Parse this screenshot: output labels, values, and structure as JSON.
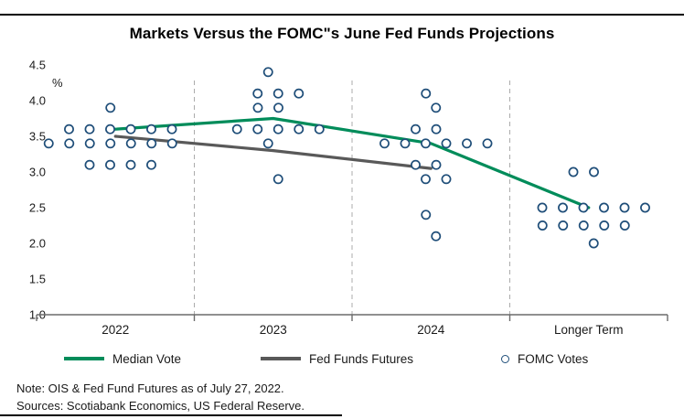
{
  "page": {
    "note": "Note: OIS & Fed Fund Futures as of July 27, 2022.",
    "sources": "Sources: Scotiabank Economics, US Federal Reserve."
  },
  "legend": {
    "items": [
      {
        "label": "Median Vote",
        "type": "line",
        "color": "#008C5A"
      },
      {
        "label": "Fed Funds Futures",
        "type": "line",
        "color": "#595959"
      },
      {
        "label": "FOMC Votes",
        "type": "dot",
        "color": "#1F4E79"
      }
    ]
  },
  "chart_data": {
    "type": "scatter",
    "title": "Markets Versus the FOMC\"s June Fed Funds Projections",
    "ylabel": "%",
    "xlabel": "",
    "ylim": [
      1.0,
      4.5
    ],
    "yticks": [
      4.5,
      4.0,
      3.5,
      3.0,
      2.5,
      2.0,
      1.5,
      1.0
    ],
    "categories": [
      "2022",
      "2023",
      "2024",
      "Longer Term"
    ],
    "grid": false,
    "category_separators": "dashed",
    "legend_position": "bottom",
    "series": [
      {
        "name": "Median Vote",
        "type": "line",
        "color": "#008C5A",
        "values": [
          3.6,
          3.75,
          3.4,
          2.5
        ]
      },
      {
        "name": "Fed Funds Futures",
        "type": "line",
        "color": "#595959",
        "values": [
          3.5,
          3.3,
          3.05,
          null
        ]
      },
      {
        "name": "FOMC Votes",
        "type": "scatter",
        "color": "#1F4E79",
        "dots": {
          "2022": [
            [
              3.9,
              1
            ],
            [
              3.6,
              6
            ],
            [
              3.4,
              7
            ],
            [
              3.1,
              4
            ]
          ],
          "2023": [
            [
              4.4,
              1
            ],
            [
              4.1,
              3
            ],
            [
              3.9,
              2
            ],
            [
              3.6,
              5
            ],
            [
              3.4,
              1
            ],
            [
              2.9,
              1
            ]
          ],
          "2024": [
            [
              4.1,
              1
            ],
            [
              3.9,
              1
            ],
            [
              3.6,
              2
            ],
            [
              3.4,
              6
            ],
            [
              3.1,
              2
            ],
            [
              2.9,
              2
            ],
            [
              2.4,
              1
            ],
            [
              2.1,
              1
            ]
          ],
          "Longer Term": [
            [
              3.0,
              2
            ],
            [
              2.5,
              6
            ],
            [
              2.25,
              5
            ],
            [
              2.0,
              1
            ]
          ]
        }
      }
    ]
  }
}
